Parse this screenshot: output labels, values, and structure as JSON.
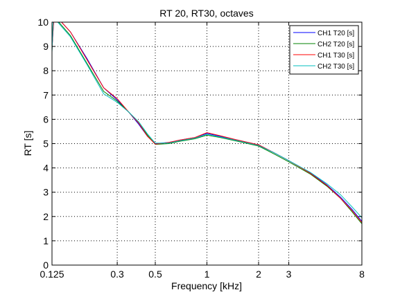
{
  "chart_data": {
    "type": "line",
    "title": "RT 20, RT30, octaves",
    "xlabel": "Frequency [kHz]",
    "ylabel": "RT [s]",
    "x_scale": "log",
    "xlim": [
      0.125,
      8
    ],
    "ylim": [
      0,
      10
    ],
    "x_ticks": [
      0.125,
      0.3,
      0.5,
      1,
      2,
      3,
      8
    ],
    "x_tick_labels": [
      "0.125",
      "0.3",
      "0.5",
      "1",
      "2",
      "3",
      "8"
    ],
    "y_ticks": [
      0,
      1,
      2,
      3,
      4,
      5,
      6,
      7,
      8,
      9,
      10
    ],
    "y_tick_labels": [
      "0",
      "1",
      "2",
      "3",
      "4",
      "5",
      "6",
      "7",
      "8",
      "9",
      "10"
    ],
    "grid": true,
    "legend_position": "top-right",
    "series": [
      {
        "name": "CH1 T20 [s]",
        "color": "#0000ff",
        "points": [
          [
            0.125,
            8.9
          ],
          [
            0.128,
            10.1
          ],
          [
            0.14,
            10.05
          ],
          [
            0.16,
            9.6
          ],
          [
            0.2,
            8.5
          ],
          [
            0.25,
            7.3
          ],
          [
            0.3,
            6.8
          ],
          [
            0.35,
            6.3
          ],
          [
            0.4,
            5.8
          ],
          [
            0.45,
            5.3
          ],
          [
            0.5,
            5.0
          ],
          [
            0.6,
            5.05
          ],
          [
            0.7,
            5.15
          ],
          [
            0.85,
            5.25
          ],
          [
            1,
            5.42
          ],
          [
            1.2,
            5.3
          ],
          [
            1.5,
            5.15
          ],
          [
            2,
            4.95
          ],
          [
            2.5,
            4.6
          ],
          [
            3,
            4.3
          ],
          [
            4,
            3.8
          ],
          [
            5,
            3.3
          ],
          [
            6,
            2.8
          ],
          [
            7,
            2.3
          ],
          [
            8,
            1.8
          ]
        ]
      },
      {
        "name": "CH2 T20 [s]",
        "color": "#008000",
        "points": [
          [
            0.125,
            8.8
          ],
          [
            0.127,
            10.1
          ],
          [
            0.135,
            10.05
          ],
          [
            0.16,
            9.45
          ],
          [
            0.2,
            8.3
          ],
          [
            0.25,
            7.15
          ],
          [
            0.3,
            6.75
          ],
          [
            0.35,
            6.3
          ],
          [
            0.4,
            5.85
          ],
          [
            0.45,
            5.35
          ],
          [
            0.5,
            4.97
          ],
          [
            0.6,
            5.0
          ],
          [
            0.7,
            5.1
          ],
          [
            0.85,
            5.2
          ],
          [
            1,
            5.35
          ],
          [
            1.2,
            5.25
          ],
          [
            1.5,
            5.1
          ],
          [
            2,
            4.9
          ],
          [
            2.5,
            4.55
          ],
          [
            3,
            4.25
          ],
          [
            4,
            3.75
          ],
          [
            5,
            3.25
          ],
          [
            6,
            2.75
          ],
          [
            7,
            2.2
          ],
          [
            8,
            1.7
          ]
        ]
      },
      {
        "name": "CH1 T30 [s]",
        "color": "#ff0000",
        "points": [
          [
            0.125,
            8.85
          ],
          [
            0.128,
            10.1
          ],
          [
            0.14,
            10.05
          ],
          [
            0.16,
            9.6
          ],
          [
            0.2,
            8.45
          ],
          [
            0.25,
            7.3
          ],
          [
            0.3,
            6.85
          ],
          [
            0.35,
            6.3
          ],
          [
            0.4,
            5.85
          ],
          [
            0.45,
            5.3
          ],
          [
            0.5,
            4.98
          ],
          [
            0.6,
            5.05
          ],
          [
            0.7,
            5.15
          ],
          [
            0.85,
            5.25
          ],
          [
            1,
            5.45
          ],
          [
            1.2,
            5.32
          ],
          [
            1.5,
            5.15
          ],
          [
            2,
            4.95
          ],
          [
            2.5,
            4.6
          ],
          [
            3,
            4.3
          ],
          [
            4,
            3.78
          ],
          [
            5,
            3.28
          ],
          [
            6,
            2.75
          ],
          [
            7,
            2.25
          ],
          [
            8,
            1.75
          ]
        ]
      },
      {
        "name": "CH2 T30 [s]",
        "color": "#00bfbf",
        "points": [
          [
            0.125,
            8.75
          ],
          [
            0.127,
            10.1
          ],
          [
            0.135,
            10.0
          ],
          [
            0.16,
            9.4
          ],
          [
            0.2,
            8.25
          ],
          [
            0.25,
            7.05
          ],
          [
            0.3,
            6.7
          ],
          [
            0.35,
            6.3
          ],
          [
            0.4,
            5.9
          ],
          [
            0.45,
            5.4
          ],
          [
            0.5,
            5.02
          ],
          [
            0.6,
            5.02
          ],
          [
            0.7,
            5.12
          ],
          [
            0.85,
            5.22
          ],
          [
            1,
            5.38
          ],
          [
            1.2,
            5.27
          ],
          [
            1.5,
            5.12
          ],
          [
            2,
            4.92
          ],
          [
            2.5,
            4.6
          ],
          [
            3,
            4.3
          ],
          [
            4,
            3.82
          ],
          [
            5,
            3.35
          ],
          [
            6,
            2.9
          ],
          [
            7,
            2.4
          ],
          [
            8,
            1.95
          ]
        ]
      }
    ]
  }
}
